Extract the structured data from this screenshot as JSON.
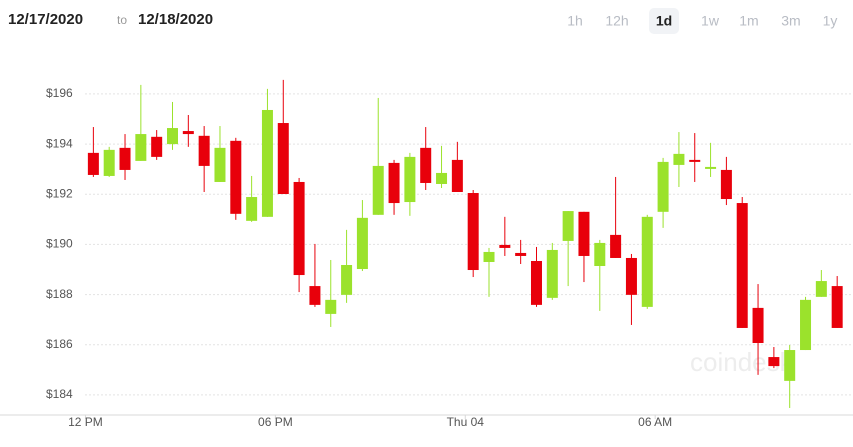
{
  "range": {
    "start": "12/17/2020",
    "separator": "to",
    "end": "12/18/2020"
  },
  "periods": [
    "1h",
    "12h",
    "1d",
    "1w",
    "1m",
    "3m",
    "1y"
  ],
  "selected_period": 2,
  "watermark": "coindesk",
  "chart_data": {
    "type": "candlestick",
    "x": [
      12.25,
      12.75,
      13.25,
      13.75,
      14.25,
      14.75,
      15.25,
      15.75,
      16.25,
      16.75,
      17.25,
      17.75,
      18.25,
      18.75,
      19.25,
      19.75,
      20.25,
      20.75,
      21.25,
      21.75,
      22.25,
      22.75,
      23.25,
      23.75,
      24.25,
      24.75,
      25.25,
      25.75,
      26.25,
      26.75,
      27.25,
      27.75,
      28.25,
      28.75,
      29.25,
      29.75,
      30.25,
      30.75,
      31.25,
      31.75,
      32.25,
      32.75,
      33.25,
      33.75,
      34.25,
      34.75,
      35.25,
      35.75
    ],
    "open": [
      193.65,
      192.73,
      193.85,
      193.33,
      194.29,
      194.0,
      194.52,
      194.33,
      192.49,
      194.13,
      190.94,
      191.1,
      194.84,
      192.49,
      188.34,
      187.23,
      187.99,
      189.02,
      191.18,
      193.25,
      191.69,
      193.85,
      192.41,
      193.37,
      192.05,
      189.3,
      189.98,
      189.66,
      189.34,
      187.87,
      190.14,
      191.3,
      189.14,
      190.38,
      189.46,
      187.51,
      191.3,
      193.17,
      193.37,
      193.01,
      192.97,
      191.65,
      187.47,
      185.51,
      184.56,
      185.79,
      187.91,
      188.34
    ],
    "high": [
      194.68,
      193.89,
      194.4,
      196.36,
      194.56,
      195.68,
      195.16,
      194.72,
      194.72,
      194.25,
      192.73,
      196.2,
      196.56,
      192.65,
      190.02,
      189.38,
      190.58,
      191.77,
      195.84,
      193.37,
      193.65,
      194.68,
      193.93,
      194.09,
      192.17,
      189.86,
      191.1,
      190.18,
      189.9,
      190.06,
      191.33,
      191.3,
      190.18,
      192.69,
      189.62,
      191.18,
      193.45,
      194.48,
      194.44,
      194.05,
      193.49,
      191.89,
      188.42,
      185.91,
      185.99,
      187.91,
      188.98,
      188.74
    ],
    "low": [
      192.69,
      192.69,
      192.57,
      193.33,
      193.37,
      193.77,
      193.89,
      192.09,
      192.49,
      190.98,
      190.9,
      191.1,
      192.01,
      188.1,
      187.51,
      186.71,
      187.67,
      188.94,
      191.18,
      191.18,
      191.14,
      192.17,
      192.25,
      192.09,
      188.7,
      187.91,
      189.54,
      189.22,
      187.51,
      187.79,
      188.34,
      188.5,
      187.35,
      189.46,
      186.79,
      187.43,
      190.66,
      192.29,
      192.49,
      192.69,
      191.57,
      186.67,
      184.8,
      185.07,
      183.48,
      185.79,
      187.91,
      186.67
    ],
    "close": [
      192.77,
      193.77,
      192.97,
      194.4,
      193.49,
      194.64,
      194.4,
      193.13,
      193.85,
      191.22,
      191.89,
      195.36,
      192.01,
      188.78,
      187.59,
      187.79,
      189.18,
      191.06,
      193.13,
      191.65,
      193.49,
      192.45,
      192.85,
      192.09,
      188.98,
      189.7,
      189.86,
      189.54,
      187.59,
      189.78,
      191.33,
      189.54,
      190.06,
      189.46,
      187.99,
      191.1,
      193.29,
      193.61,
      193.29,
      193.09,
      191.81,
      186.67,
      186.07,
      185.15,
      185.79,
      187.79,
      188.54,
      186.67
    ],
    "up_color": "#9be22c",
    "down_color": "#e8000b",
    "xlim": [
      9.3,
      36.25
    ],
    "xticks": [
      {
        "value": 12,
        "label": "12 PM"
      },
      {
        "value": 18,
        "label": "06 PM"
      },
      {
        "value": 24,
        "label": "Thu 04"
      },
      {
        "value": 30,
        "label": "06 AM"
      }
    ],
    "ylim": [
      183.2,
      198.15
    ],
    "yticks": [
      {
        "value": 184,
        "label": "$184"
      },
      {
        "value": 186,
        "label": "$186"
      },
      {
        "value": 188,
        "label": "$188"
      },
      {
        "value": 190,
        "label": "$190"
      },
      {
        "value": 192,
        "label": "$192"
      },
      {
        "value": 194,
        "label": "$194"
      },
      {
        "value": 196,
        "label": "$196"
      }
    ],
    "grid": true
  }
}
